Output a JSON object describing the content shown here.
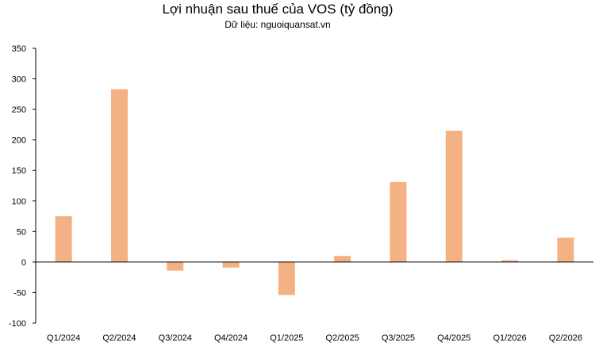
{
  "chart_data": {
    "type": "bar",
    "title": "Lợi nhuận sau thuế của VOS (tỷ đồng)",
    "subtitle": "Dữ liệu: nguoiquansat.vn",
    "xlabel": "",
    "ylabel": "",
    "categories": [
      "Q1/2024",
      "Q2/2024",
      "Q3/2024",
      "Q4/2024",
      "Q1/2025",
      "Q2/2025",
      "Q3/2025",
      "Q4/2025",
      "Q1/2026",
      "Q2/2026"
    ],
    "values": [
      75,
      283,
      -14,
      -9,
      -54,
      10,
      131,
      215,
      3,
      40
    ],
    "ylim": [
      -100,
      350
    ],
    "yticks": [
      350,
      300,
      250,
      200,
      150,
      100,
      50,
      0,
      -50,
      -100
    ],
    "grid": false,
    "legend": "none",
    "bar_color": "#F4B183"
  }
}
